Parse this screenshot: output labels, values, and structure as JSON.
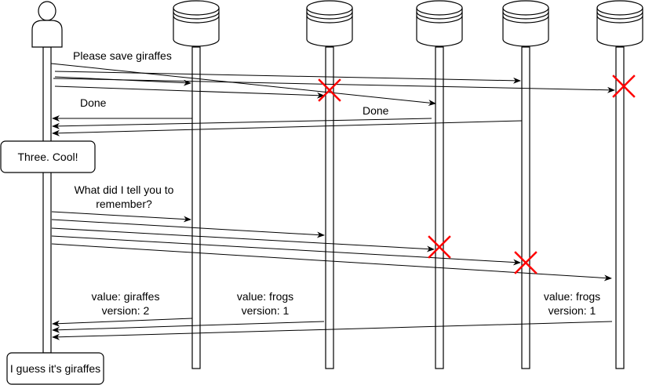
{
  "labels": {
    "save_request": "Please save giraffes",
    "done_1": "Done",
    "done_2": "Done",
    "query_line1": "What did I tell you to",
    "query_line2": "remember?",
    "resp_a_line1": "value: giraffes",
    "resp_a_line2": "version: 2",
    "resp_b_line1": "value: frogs",
    "resp_b_line2": "version: 1",
    "resp_c_line1": "value: frogs",
    "resp_c_line2": "version: 1"
  },
  "notes": {
    "three_cool": "Three. Cool!",
    "guess": "I guess it's giraffes"
  },
  "participants": {
    "client": "person-icon",
    "databases": [
      "database-icon",
      "database-icon",
      "database-icon",
      "database-icon",
      "database-icon"
    ]
  },
  "colors": {
    "line": "#000000",
    "failure": "#ff0000"
  }
}
